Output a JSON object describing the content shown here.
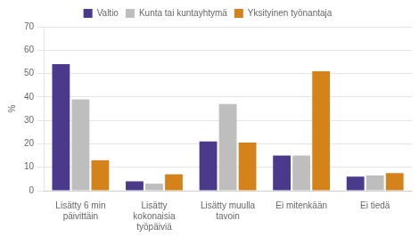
{
  "chart_data": {
    "type": "bar",
    "categories": [
      "Lisätty 6 min\npäivittäin",
      "Lisätty\nkokonaisia\ntyöpäiviä",
      "Lisätty muulla\ntavoin",
      "Ei mitenkään",
      "Ei tiedä"
    ],
    "series": [
      {
        "name": "Valtio",
        "color": "#4B3A8C",
        "values": [
          54,
          4,
          21,
          15,
          6
        ]
      },
      {
        "name": "Kunta tai kuntayhtymä",
        "color": "#BEBEBE",
        "values": [
          39,
          3,
          37,
          15,
          6.5
        ]
      },
      {
        "name": "Yksityinen työnantaja",
        "color": "#D4831A",
        "values": [
          13,
          7,
          20.5,
          51,
          7.5
        ]
      }
    ],
    "ylabel": "%",
    "ylim": [
      0,
      70
    ],
    "yticks": [
      0,
      10,
      20,
      30,
      40,
      50,
      60,
      70
    ],
    "grid": true,
    "legend": "top"
  }
}
